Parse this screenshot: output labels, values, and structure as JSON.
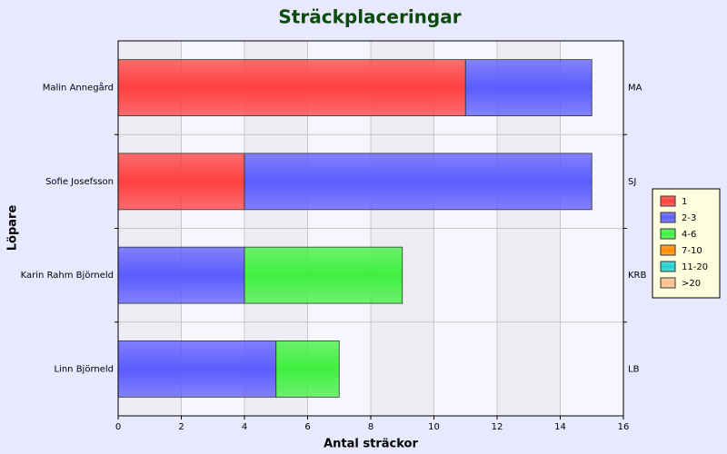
{
  "chart_data": {
    "type": "hbar_stacked",
    "title": "Sträckplaceringar",
    "x_label": "Antal sträckor",
    "y_label": "Löpare",
    "categories": [
      "Malin Annegård",
      "Sofie Josefsson",
      "Karin Rahm Björneld",
      "Linn Björneld"
    ],
    "right_labels": [
      "MA",
      "SJ",
      "KRB",
      "LB"
    ],
    "series": [
      {
        "name": "1",
        "color": "#ff4040",
        "values": [
          11,
          4,
          0,
          0
        ]
      },
      {
        "name": "2-3",
        "color": "#5c5cff",
        "values": [
          4,
          11,
          4,
          5
        ]
      },
      {
        "name": "4-6",
        "color": "#40f040",
        "values": [
          0,
          0,
          5,
          2
        ]
      },
      {
        "name": "7-10",
        "color": "#ff8c00",
        "values": [
          0,
          0,
          0,
          0
        ]
      },
      {
        "name": "11-20",
        "color": "#20d0d0",
        "values": [
          0,
          0,
          0,
          0
        ]
      },
      {
        "name": ">20",
        "color": "#ffc090",
        "values": [
          0,
          0,
          0,
          0
        ]
      }
    ],
    "xlim": [
      0,
      16
    ],
    "xticks": [
      0,
      2,
      4,
      6,
      8,
      10,
      12,
      14,
      16
    ],
    "grid": true,
    "legend": "right"
  }
}
